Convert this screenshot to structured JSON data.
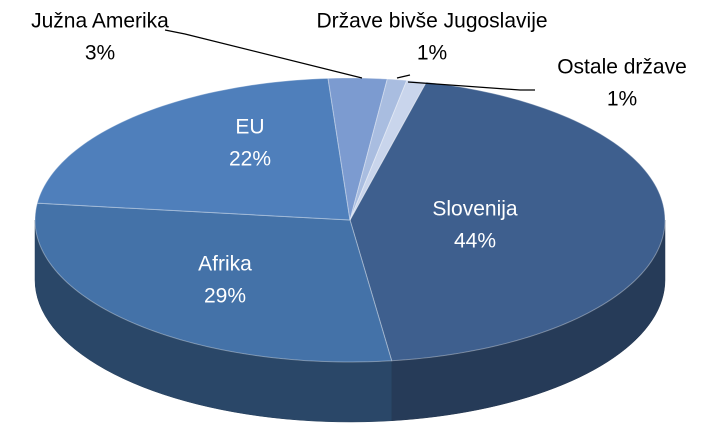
{
  "chart_data": {
    "type": "pie",
    "categories": [
      "Slovenija",
      "Afrika",
      "EU",
      "Južna Amerika",
      "Države bivše Jugoslavije",
      "Ostale države"
    ],
    "values": [
      44,
      29,
      22,
      3,
      1,
      1
    ],
    "value_labels": [
      "44%",
      "29%",
      "22%",
      "3%",
      "1%",
      "1%"
    ],
    "colors": [
      "#3e5f8e",
      "#4472a8",
      "#4f7fbb",
      "#7c9bd0",
      "#a9bde0",
      "#c9d5ec"
    ]
  }
}
